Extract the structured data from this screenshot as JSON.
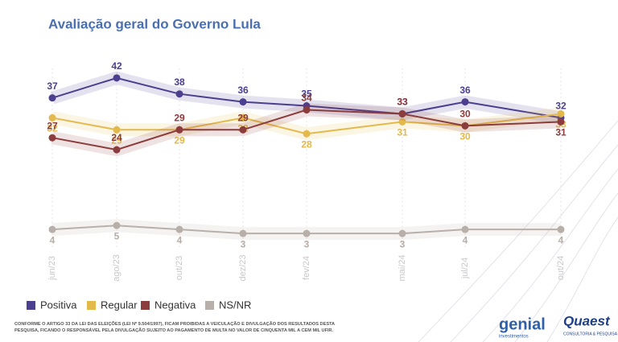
{
  "chart_data": {
    "type": "line",
    "title": "Avaliação geral do Governo Lula",
    "categories": [
      "jun/23",
      "ago/23",
      "out/23",
      "dez/23",
      "fev/24",
      "mai/24",
      "jul/24",
      "out/24"
    ],
    "series": [
      {
        "name": "Positiva",
        "color": "#4b3f8f",
        "values": [
          37,
          42,
          38,
          36,
          35,
          33,
          36,
          32
        ]
      },
      {
        "name": "Regular",
        "color": "#e3b94c",
        "values": [
          32,
          29,
          29,
          32,
          28,
          31,
          30,
          33
        ]
      },
      {
        "name": "Negativa",
        "color": "#8b3c3c",
        "values": [
          27,
          24,
          29,
          29,
          34,
          33,
          30,
          31
        ]
      },
      {
        "name": "NS/NR",
        "color": "#b9afa9",
        "values": [
          4,
          5,
          4,
          3,
          3,
          3,
          4,
          4
        ]
      }
    ],
    "ylim": [
      0,
      45
    ],
    "grid": true,
    "footnote": "CONFORME O ARTIGO 33 DA LEI DAS ELEIÇÕES (LEI Nº 9.504/1997), FICAM PROIBIDAS A VEICULAÇÃO E DIVULGAÇÃO DOS RESULTADOS DESTA PESQUISA, FICANDO O RESPONSÁVEL PELA DIVULGAÇÃO SUJEITO AO PAGAMENTO DE MULTA NO VALOR DE CINQUENTA MIL A CEM MIL UFIR.",
    "brands": {
      "genial": "genial",
      "genial_sub": "investimentos",
      "quaest": "Quaest",
      "quaest_sub": "CONSULTORIA & PESQUISA"
    }
  }
}
